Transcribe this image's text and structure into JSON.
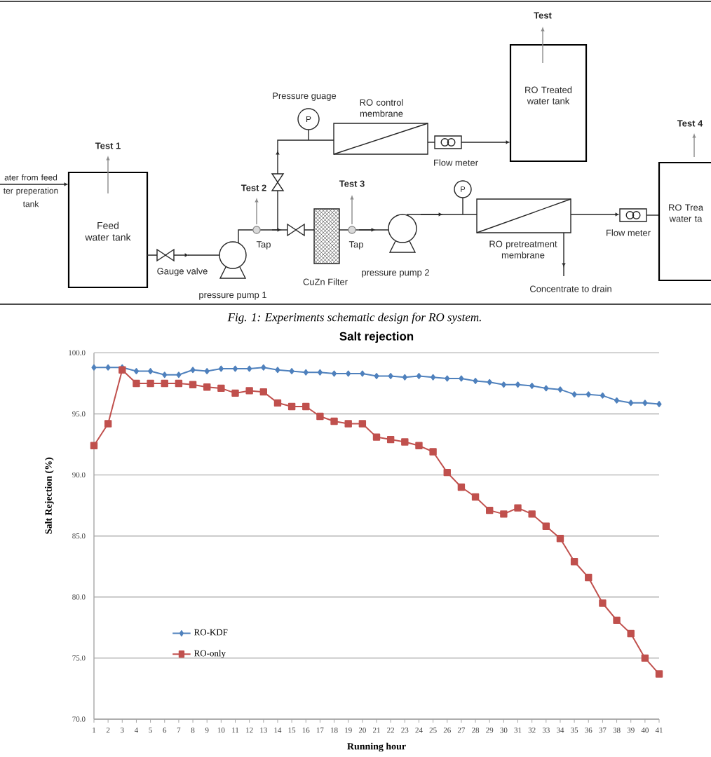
{
  "chart_data": [
    {
      "type": "other",
      "title": "Fig. 1: Experiments schematic design for RO system.",
      "annotations": [
        "ater from feed ter preperation tank",
        "Test 1",
        "Feed water tank",
        "Gauge valve",
        "pressure pump 1",
        "Test 2",
        "Tap",
        "Pressure guage",
        "P",
        "RO control membrane",
        "Flow meter",
        "Test",
        "RO Treated water tank",
        "Test 3",
        "Tap",
        "CuZn Filter",
        "pressure pump 2",
        "P",
        "RO pretreatment membrane",
        "Concentrate to drain",
        "Flow meter",
        "Test 4",
        "RO Trea water ta"
      ]
    },
    {
      "type": "line",
      "title": "Salt rejection",
      "xlabel": "Running hour",
      "ylabel": "Salt Rejection (%)",
      "categories": [
        "1",
        "2",
        "3",
        "4",
        "5",
        "6",
        "7",
        "8",
        "9",
        "10",
        "11",
        "12",
        "13",
        "14",
        "15",
        "16",
        "17",
        "18",
        "19",
        "20",
        "21",
        "22",
        "23",
        "24",
        "25",
        "26",
        "27",
        "28",
        "29",
        "30",
        "31",
        "32",
        "33",
        "34",
        "35",
        "36",
        "37",
        "38",
        "39",
        "40",
        "41"
      ],
      "ylim": [
        70,
        100
      ],
      "yticks": [
        {
          "value": 70,
          "label": "70.0"
        },
        {
          "value": 75,
          "label": "75.0"
        },
        {
          "value": 80,
          "label": "80.0"
        },
        {
          "value": 85,
          "label": "85.0"
        },
        {
          "value": 90,
          "label": "90.0"
        },
        {
          "value": 95,
          "label": "95.0"
        },
        {
          "value": 100,
          "label": "100.0"
        }
      ],
      "grid": "y",
      "legend": "bottom left",
      "series": [
        {
          "name": "RO-KDF",
          "color": "#4f81bd",
          "marker": "diamond",
          "values": [
            98.8,
            98.8,
            98.8,
            98.5,
            98.5,
            98.2,
            98.2,
            98.6,
            98.5,
            98.7,
            98.7,
            98.7,
            98.8,
            98.6,
            98.5,
            98.4,
            98.4,
            98.3,
            98.3,
            98.3,
            98.1,
            98.1,
            98.0,
            98.1,
            98.0,
            97.9,
            97.9,
            97.7,
            97.6,
            97.4,
            97.4,
            97.3,
            97.1,
            97.0,
            96.6,
            96.6,
            96.5,
            96.1,
            95.9,
            95.9,
            95.8
          ]
        },
        {
          "name": "RO-only",
          "color": "#c0504d",
          "marker": "square",
          "values": [
            92.4,
            94.2,
            98.6,
            97.5,
            97.5,
            97.5,
            97.5,
            97.4,
            97.2,
            97.1,
            96.7,
            96.9,
            96.8,
            95.9,
            95.6,
            95.6,
            94.8,
            94.4,
            94.2,
            94.2,
            93.1,
            92.9,
            92.7,
            92.4,
            91.9,
            90.2,
            89.0,
            88.2,
            87.1,
            86.8,
            87.3,
            86.8,
            85.8,
            84.8,
            82.9,
            81.6,
            79.5,
            78.1,
            77.0,
            75.0,
            73.7
          ]
        }
      ]
    }
  ]
}
